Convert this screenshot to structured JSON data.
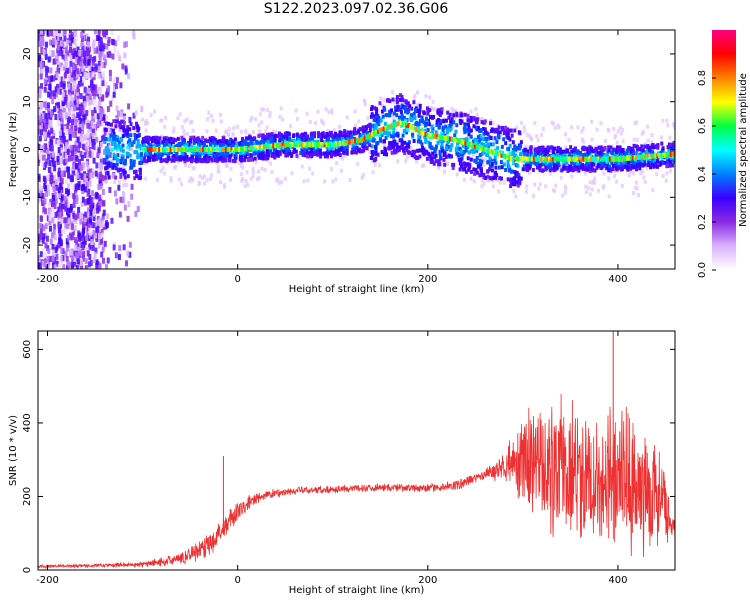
{
  "title": "S122.2023.097.02.36.G06",
  "chart_data": [
    {
      "type": "heatmap",
      "xlabel": "Height of straight line (km)",
      "ylabel": "Frequency (Hz)",
      "xlim": [
        -210,
        460
      ],
      "ylim": [
        -25,
        25
      ],
      "xticks": [
        -200,
        0,
        200,
        400
      ],
      "yticks": [
        -20,
        -10,
        0,
        10,
        20
      ],
      "colorbar": {
        "label": "Normalized spectral amplitude",
        "range": [
          0,
          1
        ],
        "ticks": [
          "0.0",
          "0.2",
          "0.4",
          "0.6",
          "0.8"
        ],
        "colors": [
          "#ffffff",
          "#d9b3ff",
          "#8a2be2",
          "#3b00ff",
          "#0080ff",
          "#00ffff",
          "#00ff40",
          "#ffff00",
          "#ff8000",
          "#ff0000",
          "#ff0080"
        ]
      },
      "ridge": {
        "height_km": [
          -100,
          -50,
          0,
          50,
          100,
          130,
          150,
          170,
          180,
          200,
          230,
          260,
          290,
          310,
          350,
          400,
          460
        ],
        "frequency_hz": [
          0,
          0,
          0,
          1,
          1,
          2,
          4,
          5.5,
          5,
          3,
          2,
          0,
          -2,
          -2,
          -2,
          -2,
          -1
        ]
      },
      "noise_region_km": [
        -210,
        -140
      ]
    },
    {
      "type": "line",
      "xlabel": "Height of straight line (km)",
      "ylabel": "SNR (10 * v/v)",
      "xlim": [
        -210,
        460
      ],
      "ylim": [
        0,
        650
      ],
      "xticks": [
        -200,
        0,
        200,
        400
      ],
      "yticks": [
        0,
        200,
        400,
        600
      ],
      "color": "#ee3030",
      "envelope": {
        "height_km": [
          -210,
          -150,
          -100,
          -60,
          -30,
          -10,
          10,
          30,
          60,
          100,
          150,
          200,
          230,
          260,
          280,
          300,
          320,
          360,
          400,
          430,
          450,
          455,
          460
        ],
        "snr_mean": [
          10,
          12,
          15,
          30,
          70,
          130,
          180,
          205,
          215,
          220,
          225,
          222,
          230,
          260,
          280,
          300,
          280,
          260,
          240,
          220,
          180,
          110,
          110
        ],
        "snr_spread": [
          5,
          5,
          8,
          20,
          40,
          40,
          25,
          15,
          12,
          12,
          12,
          12,
          15,
          20,
          40,
          140,
          200,
          230,
          240,
          200,
          150,
          40,
          40
        ]
      },
      "spikes": [
        {
          "height_km": -15,
          "snr": 310
        },
        {
          "height_km": 395,
          "snr": 650
        }
      ]
    }
  ]
}
